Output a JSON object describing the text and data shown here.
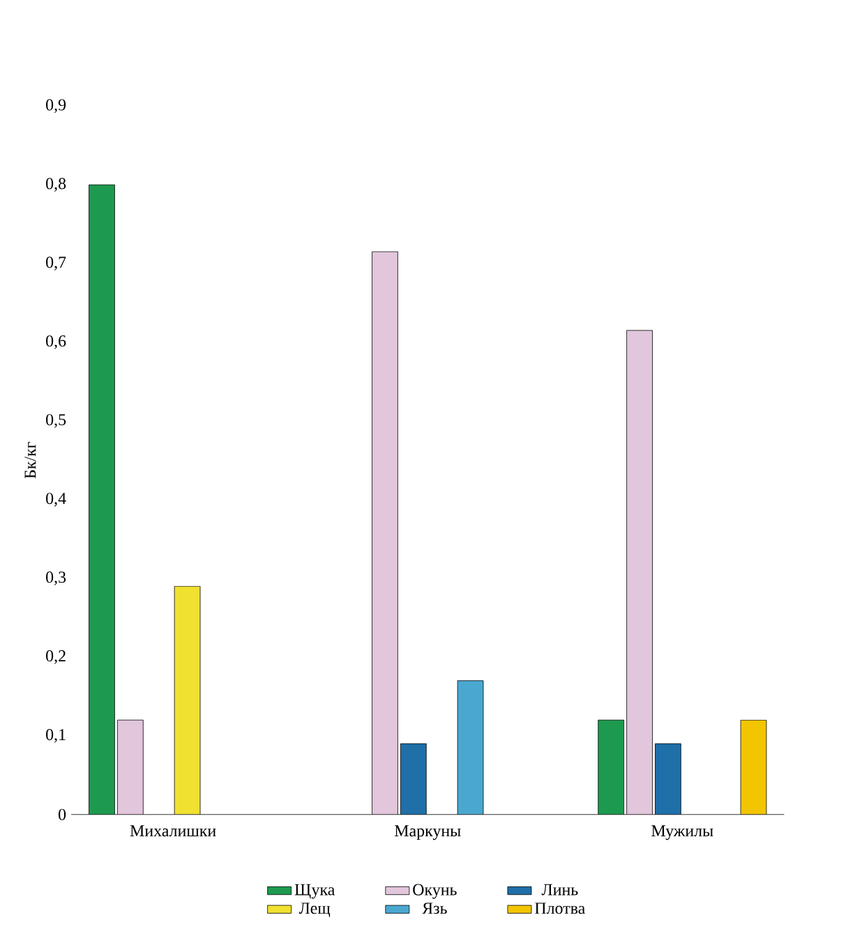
{
  "chart_data": {
    "type": "bar",
    "ylabel": "Бк/кг",
    "categories": [
      "Михалишки",
      "Маркуны",
      "Мужилы"
    ],
    "series": [
      {
        "name": "Щука",
        "color": "#1e9a50",
        "values": [
          0.8,
          null,
          0.12
        ]
      },
      {
        "name": "Окунь",
        "color": "#e2c6dc",
        "values": [
          0.12,
          0.715,
          0.615
        ]
      },
      {
        "name": "Линь",
        "color": "#1f6fa8",
        "values": [
          null,
          0.09,
          0.09
        ]
      },
      {
        "name": "Лещ",
        "color": "#f0e030",
        "values": [
          0.29,
          null,
          null
        ]
      },
      {
        "name": "Язь",
        "color": "#4aa8d0",
        "values": [
          null,
          0.17,
          null
        ]
      },
      {
        "name": "Плотва",
        "color": "#f2c500",
        "values": [
          null,
          null,
          0.12
        ]
      }
    ],
    "ylim": [
      0,
      0.9
    ],
    "yticks": [
      {
        "value": 0,
        "label": "0"
      },
      {
        "value": 0.1,
        "label": "0,1"
      },
      {
        "value": 0.2,
        "label": "0,2"
      },
      {
        "value": 0.3,
        "label": "0,3"
      },
      {
        "value": 0.4,
        "label": "0,4"
      },
      {
        "value": 0.5,
        "label": "0,5"
      },
      {
        "value": 0.6,
        "label": "0,6"
      },
      {
        "value": 0.7,
        "label": "0,7"
      },
      {
        "value": 0.8,
        "label": "0,8"
      },
      {
        "value": 0.9,
        "label": "0,9"
      }
    ],
    "grid": false,
    "legend": "bottom"
  }
}
